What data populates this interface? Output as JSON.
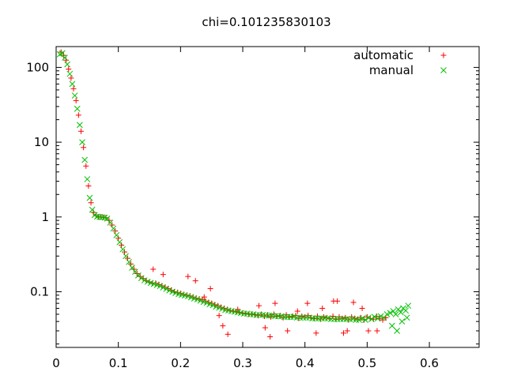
{
  "chart_data": {
    "type": "scatter",
    "title": "chi=0.101235830103",
    "xlabel": "",
    "ylabel": "",
    "xlim": [
      0,
      0.68
    ],
    "ylim": [
      0.018,
      190
    ],
    "yscale": "log",
    "grid": false,
    "legend_position": "top-right",
    "x_ticks": [
      0,
      0.1,
      0.2,
      0.3,
      0.4,
      0.5,
      0.6
    ],
    "x_tick_labels": [
      "0",
      "0.1",
      "0.2",
      "0.3",
      "0.4",
      "0.5",
      "0.6"
    ],
    "y_ticks": [
      0.1,
      1,
      10,
      100
    ],
    "y_tick_labels": [
      "0.1",
      "1",
      "10",
      "100"
    ],
    "series": [
      {
        "name": "automatic",
        "color": "#ff0000",
        "marker": "plus",
        "x": [
          0.008,
          0.012,
          0.016,
          0.02,
          0.024,
          0.028,
          0.032,
          0.036,
          0.04,
          0.044,
          0.048,
          0.052,
          0.056,
          0.06,
          0.064,
          0.068,
          0.072,
          0.076,
          0.08,
          0.085,
          0.09,
          0.095,
          0.1,
          0.105,
          0.11,
          0.115,
          0.12,
          0.125,
          0.13,
          0.135,
          0.14,
          0.145,
          0.15,
          0.155,
          0.16,
          0.165,
          0.17,
          0.175,
          0.18,
          0.185,
          0.19,
          0.195,
          0.2,
          0.205,
          0.21,
          0.215,
          0.22,
          0.225,
          0.23,
          0.235,
          0.24,
          0.245,
          0.25,
          0.255,
          0.26,
          0.265,
          0.27,
          0.275,
          0.28,
          0.285,
          0.29,
          0.295,
          0.3,
          0.305,
          0.31,
          0.315,
          0.32,
          0.325,
          0.33,
          0.335,
          0.34,
          0.345,
          0.35,
          0.355,
          0.36,
          0.365,
          0.37,
          0.375,
          0.38,
          0.385,
          0.39,
          0.395,
          0.4,
          0.405,
          0.41,
          0.415,
          0.42,
          0.425,
          0.43,
          0.435,
          0.44,
          0.445,
          0.45,
          0.455,
          0.46,
          0.465,
          0.47,
          0.475,
          0.48,
          0.485,
          0.49,
          0.495,
          0.5,
          0.505,
          0.51,
          0.515,
          0.52,
          0.525,
          0.53,
          0.212,
          0.238,
          0.262,
          0.276,
          0.292,
          0.336,
          0.352,
          0.372,
          0.404,
          0.418,
          0.446,
          0.462,
          0.478,
          0.502,
          0.156,
          0.172,
          0.224,
          0.248,
          0.268,
          0.326,
          0.344,
          0.388,
          0.428,
          0.452,
          0.468,
          0.492,
          0.516
        ],
        "y": [
          160,
          145,
          125,
          95,
          72,
          52,
          36,
          23,
          14,
          8.5,
          4.8,
          2.6,
          1.55,
          1.15,
          1.04,
          1.0,
          1.0,
          0.99,
          0.98,
          0.9,
          0.78,
          0.65,
          0.52,
          0.42,
          0.34,
          0.28,
          0.235,
          0.2,
          0.175,
          0.16,
          0.15,
          0.14,
          0.135,
          0.13,
          0.13,
          0.125,
          0.12,
          0.115,
          0.11,
          0.105,
          0.1,
          0.098,
          0.095,
          0.092,
          0.09,
          0.088,
          0.085,
          0.082,
          0.08,
          0.078,
          0.075,
          0.072,
          0.07,
          0.067,
          0.065,
          0.062,
          0.06,
          0.058,
          0.056,
          0.055,
          0.054,
          0.053,
          0.052,
          0.051,
          0.05,
          0.05,
          0.049,
          0.048,
          0.05,
          0.047,
          0.049,
          0.046,
          0.05,
          0.047,
          0.048,
          0.045,
          0.049,
          0.046,
          0.047,
          0.048,
          0.044,
          0.047,
          0.046,
          0.048,
          0.045,
          0.044,
          0.047,
          0.043,
          0.046,
          0.045,
          0.044,
          0.047,
          0.043,
          0.046,
          0.044,
          0.045,
          0.042,
          0.046,
          0.044,
          0.043,
          0.045,
          0.042,
          0.046,
          0.044,
          0.043,
          0.047,
          0.044,
          0.042,
          0.045,
          0.16,
          0.085,
          0.048,
          0.027,
          0.058,
          0.033,
          0.07,
          0.03,
          0.07,
          0.028,
          0.075,
          0.028,
          0.072,
          0.03,
          0.2,
          0.17,
          0.14,
          0.11,
          0.035,
          0.065,
          0.025,
          0.055,
          0.06,
          0.075,
          0.03,
          0.06,
          0.03
        ]
      },
      {
        "name": "manual",
        "color": "#00c000",
        "marker": "cross",
        "x": [
          0.006,
          0.01,
          0.014,
          0.018,
          0.022,
          0.026,
          0.03,
          0.034,
          0.038,
          0.042,
          0.046,
          0.05,
          0.054,
          0.058,
          0.062,
          0.066,
          0.07,
          0.074,
          0.078,
          0.082,
          0.087,
          0.092,
          0.097,
          0.102,
          0.107,
          0.112,
          0.117,
          0.122,
          0.127,
          0.132,
          0.137,
          0.142,
          0.147,
          0.152,
          0.157,
          0.162,
          0.167,
          0.172,
          0.177,
          0.182,
          0.187,
          0.192,
          0.197,
          0.202,
          0.207,
          0.212,
          0.217,
          0.222,
          0.227,
          0.232,
          0.237,
          0.242,
          0.247,
          0.252,
          0.257,
          0.262,
          0.267,
          0.272,
          0.277,
          0.282,
          0.287,
          0.292,
          0.297,
          0.302,
          0.307,
          0.312,
          0.317,
          0.322,
          0.327,
          0.332,
          0.337,
          0.342,
          0.347,
          0.352,
          0.357,
          0.362,
          0.367,
          0.372,
          0.377,
          0.382,
          0.387,
          0.392,
          0.397,
          0.402,
          0.407,
          0.412,
          0.417,
          0.422,
          0.427,
          0.432,
          0.437,
          0.442,
          0.447,
          0.452,
          0.457,
          0.462,
          0.467,
          0.472,
          0.477,
          0.482,
          0.487,
          0.492,
          0.497,
          0.502,
          0.507,
          0.512,
          0.517,
          0.522,
          0.527,
          0.532,
          0.537,
          0.542,
          0.546,
          0.55,
          0.554,
          0.558,
          0.562,
          0.566,
          0.54,
          0.548,
          0.556,
          0.564
        ],
        "y": [
          150,
          155,
          135,
          110,
          82,
          60,
          42,
          28,
          17,
          10,
          5.8,
          3.2,
          1.8,
          1.25,
          1.06,
          1.01,
          1.0,
          0.99,
          0.98,
          0.95,
          0.84,
          0.7,
          0.57,
          0.46,
          0.37,
          0.3,
          0.25,
          0.21,
          0.185,
          0.165,
          0.152,
          0.142,
          0.136,
          0.131,
          0.127,
          0.123,
          0.119,
          0.114,
          0.109,
          0.104,
          0.1,
          0.096,
          0.093,
          0.091,
          0.089,
          0.087,
          0.084,
          0.081,
          0.079,
          0.076,
          0.073,
          0.071,
          0.068,
          0.066,
          0.063,
          0.061,
          0.059,
          0.057,
          0.056,
          0.055,
          0.054,
          0.053,
          0.052,
          0.051,
          0.051,
          0.05,
          0.05,
          0.049,
          0.049,
          0.049,
          0.048,
          0.048,
          0.048,
          0.047,
          0.047,
          0.047,
          0.046,
          0.046,
          0.046,
          0.046,
          0.045,
          0.045,
          0.045,
          0.045,
          0.045,
          0.044,
          0.044,
          0.044,
          0.044,
          0.044,
          0.044,
          0.043,
          0.043,
          0.043,
          0.043,
          0.043,
          0.043,
          0.043,
          0.043,
          0.042,
          0.042,
          0.044,
          0.042,
          0.045,
          0.043,
          0.046,
          0.044,
          0.047,
          0.045,
          0.05,
          0.052,
          0.055,
          0.05,
          0.058,
          0.053,
          0.06,
          0.056,
          0.065,
          0.035,
          0.03,
          0.04,
          0.045
        ]
      }
    ]
  }
}
